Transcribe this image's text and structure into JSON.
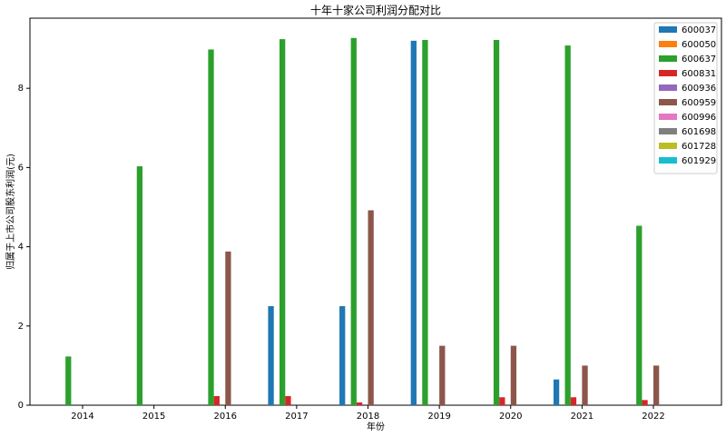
{
  "chart_data": {
    "type": "bar",
    "title": "十年十家公司利润分配对比",
    "x_label": "年份",
    "y_label": "归属于上市公司股东利润(元)",
    "categories": [
      "2014",
      "2015",
      "2016",
      "2017",
      "2018",
      "2019",
      "2020",
      "2021",
      "2022"
    ],
    "series": [
      {
        "name": "600037",
        "color": "#1f77b4",
        "values": [
          null,
          null,
          null,
          2.5,
          2.5,
          9.2,
          null,
          0.65,
          null
        ]
      },
      {
        "name": "600050",
        "color": "#ff7f0e",
        "values": [
          null,
          null,
          null,
          null,
          null,
          null,
          null,
          null,
          null
        ]
      },
      {
        "name": "600637",
        "color": "#2ca02c",
        "values": [
          1.23,
          6.03,
          8.98,
          9.24,
          9.27,
          9.22,
          9.22,
          9.08,
          4.53
        ]
      },
      {
        "name": "600831",
        "color": "#d62728",
        "values": [
          null,
          null,
          0.23,
          0.23,
          0.07,
          null,
          0.2,
          0.2,
          0.13
        ]
      },
      {
        "name": "600936",
        "color": "#9467bd",
        "values": [
          null,
          null,
          null,
          null,
          null,
          null,
          null,
          null,
          null
        ]
      },
      {
        "name": "600959",
        "color": "#8c564b",
        "values": [
          null,
          null,
          3.88,
          null,
          4.92,
          1.5,
          1.5,
          1.0,
          1.0
        ]
      },
      {
        "name": "600996",
        "color": "#e377c2",
        "values": [
          null,
          null,
          null,
          null,
          null,
          null,
          null,
          null,
          null
        ]
      },
      {
        "name": "601698",
        "color": "#7f7f7f",
        "values": [
          null,
          null,
          null,
          null,
          null,
          null,
          null,
          null,
          null
        ]
      },
      {
        "name": "601728",
        "color": "#bcbd22",
        "values": [
          null,
          null,
          null,
          null,
          null,
          null,
          null,
          null,
          null
        ]
      },
      {
        "name": "601929",
        "color": "#17becf",
        "values": [
          null,
          null,
          null,
          null,
          null,
          null,
          null,
          null,
          null
        ]
      }
    ],
    "ylim": [
      0,
      9.77
    ],
    "yticks": [
      0,
      2,
      4,
      6,
      8
    ],
    "legend": "upper-right"
  }
}
